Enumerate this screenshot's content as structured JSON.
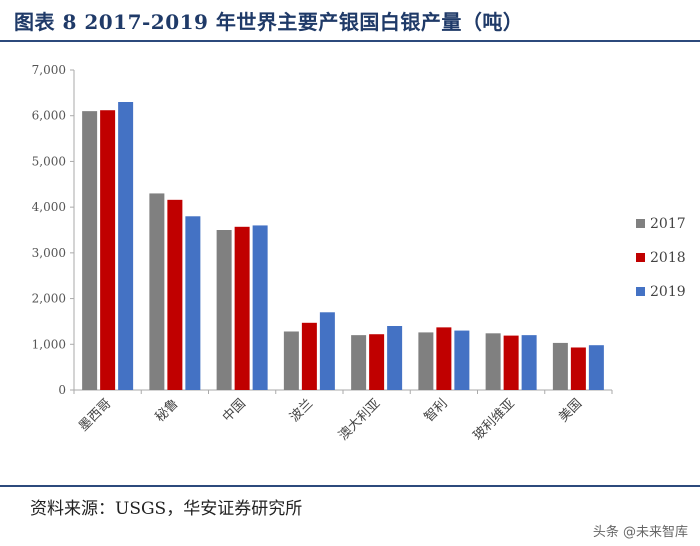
{
  "title": "图表 8 2017-2019 年世界主要产银国白银产量（吨）",
  "source": "资料来源：USGS，华安证券研究所",
  "watermark": "头条 @未来智库",
  "colors": {
    "2017": "#808080",
    "2018": "#c00000",
    "2019": "#4472c4",
    "title": "#1f3a68"
  },
  "chart_data": {
    "type": "bar",
    "title": "",
    "xlabel": "",
    "ylabel": "",
    "ylim": [
      0,
      7000
    ],
    "yticks": [
      0,
      1000,
      2000,
      3000,
      4000,
      5000,
      6000,
      7000
    ],
    "ytick_labels": [
      "0",
      "1,000",
      "2,000",
      "3,000",
      "4,000",
      "5,000",
      "6,000",
      "7,000"
    ],
    "categories": [
      "墨西哥",
      "秘鲁",
      "中国",
      "波兰",
      "澳大利亚",
      "智利",
      "玻利维亚",
      "美国"
    ],
    "series": [
      {
        "name": "2017",
        "color": "#808080",
        "values": [
          6100,
          4300,
          3500,
          1280,
          1200,
          1260,
          1240,
          1030
        ]
      },
      {
        "name": "2018",
        "color": "#c00000",
        "values": [
          6120,
          4160,
          3570,
          1470,
          1220,
          1370,
          1190,
          930
        ]
      },
      {
        "name": "2019",
        "color": "#4472c4",
        "values": [
          6300,
          3800,
          3600,
          1700,
          1400,
          1300,
          1200,
          980
        ]
      }
    ],
    "grid": false,
    "legend_position": "right"
  }
}
